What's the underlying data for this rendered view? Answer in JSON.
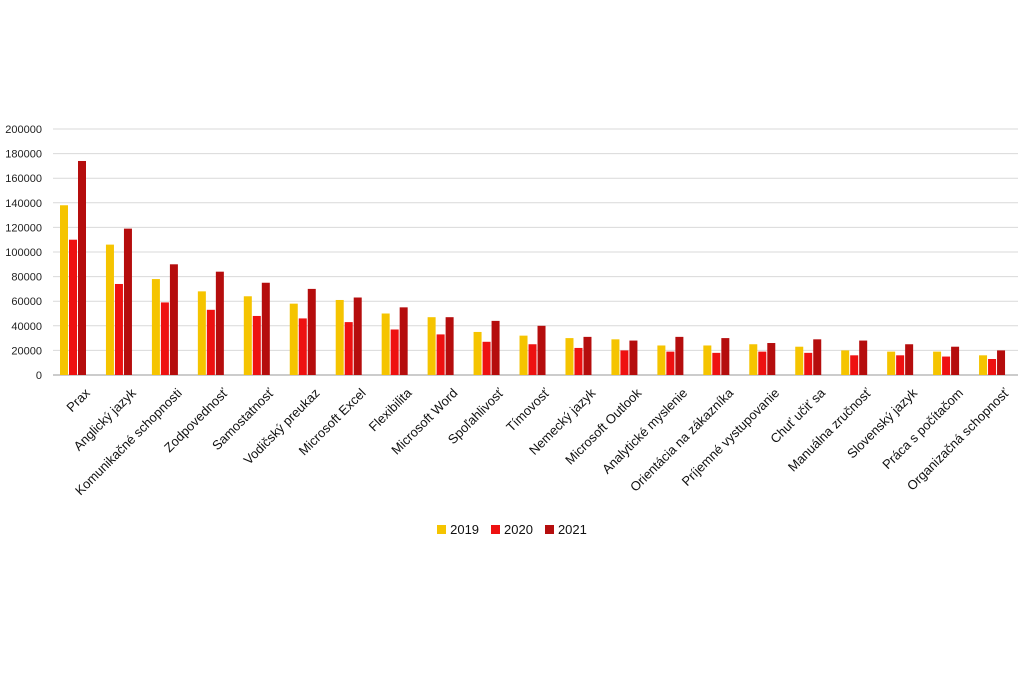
{
  "chart_data": {
    "type": "bar",
    "title": "",
    "xlabel": "",
    "ylabel": "",
    "ylim": [
      0,
      200000
    ],
    "yticks": [
      "0",
      "20000",
      "40000",
      "60000",
      "80000",
      "100000",
      "120000",
      "140000",
      "160000",
      "180000",
      "200000"
    ],
    "grid": true,
    "legend_position": "bottom",
    "categories": [
      "Prax",
      "Anglický jazyk",
      "Komunikačné schopnosti",
      "Zodpovednosť",
      "Samostatnosť",
      "Vodičský preukaz",
      "Microsoft Excel",
      "Flexibilita",
      "Microsoft Word",
      "Spoľahlivosť",
      "Tímovosť",
      "Nemecký jazyk",
      "Microsoft Outlook",
      "Analytické myslenie",
      "Orientácia na zákazníka",
      "Príjemné vystupovanie",
      "Chuť učiť sa",
      "Manuálna zručnosť",
      "Slovenský jazyk",
      "Práca s počítačom",
      "Organizačná schopnosť"
    ],
    "series": [
      {
        "name": "2019",
        "color": "#f5c400",
        "values": [
          138000,
          106000,
          78000,
          68000,
          64000,
          58000,
          61000,
          50000,
          47000,
          35000,
          32000,
          30000,
          29000,
          24000,
          24000,
          25000,
          23000,
          20000,
          19000,
          19000,
          16000
        ]
      },
      {
        "name": "2020",
        "color": "#ee1111",
        "values": [
          110000,
          74000,
          59000,
          53000,
          48000,
          46000,
          43000,
          37000,
          33000,
          27000,
          25000,
          22000,
          20000,
          19000,
          18000,
          19000,
          18000,
          16000,
          16000,
          15000,
          13000
        ]
      },
      {
        "name": "2021",
        "color": "#b50d0d",
        "values": [
          174000,
          119000,
          90000,
          84000,
          75000,
          70000,
          63000,
          55000,
          47000,
          44000,
          40000,
          31000,
          28000,
          31000,
          30000,
          26000,
          29000,
          28000,
          25000,
          23000,
          20000
        ]
      }
    ]
  }
}
